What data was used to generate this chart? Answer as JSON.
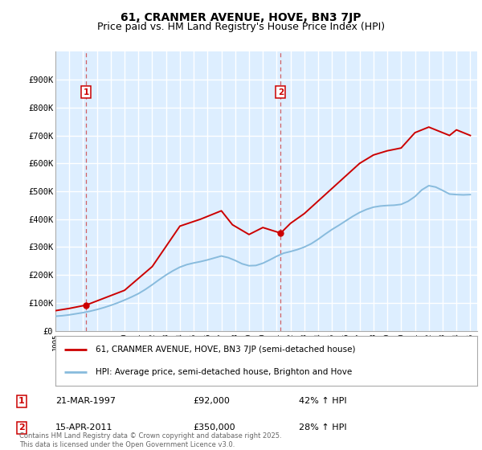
{
  "title": "61, CRANMER AVENUE, HOVE, BN3 7JP",
  "subtitle": "Price paid vs. HM Land Registry's House Price Index (HPI)",
  "ylim": [
    0,
    1000000
  ],
  "yticks": [
    0,
    100000,
    200000,
    300000,
    400000,
    500000,
    600000,
    700000,
    800000,
    900000
  ],
  "ytick_labels": [
    "£0",
    "£100K",
    "£200K",
    "£300K",
    "£400K",
    "£500K",
    "£600K",
    "£700K",
    "£800K",
    "£900K"
  ],
  "bg_color": "#ddeeff",
  "grid_color": "#ffffff",
  "sale1_date": 1997.22,
  "sale1_price": 92000,
  "sale1_label": "1",
  "sale2_date": 2011.29,
  "sale2_price": 350000,
  "sale2_label": "2",
  "legend_line1": "61, CRANMER AVENUE, HOVE, BN3 7JP (semi-detached house)",
  "legend_line2": "HPI: Average price, semi-detached house, Brighton and Hove",
  "annotation1_date": "21-MAR-1997",
  "annotation1_price": "£92,000",
  "annotation1_hpi": "42% ↑ HPI",
  "annotation2_date": "15-APR-2011",
  "annotation2_price": "£350,000",
  "annotation2_hpi": "28% ↑ HPI",
  "footer": "Contains HM Land Registry data © Crown copyright and database right 2025.\nThis data is licensed under the Open Government Licence v3.0.",
  "line_color_red": "#cc0000",
  "line_color_blue": "#88bbdd",
  "title_fontsize": 10,
  "subtitle_fontsize": 9,
  "hpi_years": [
    1995.0,
    1995.5,
    1996.0,
    1996.5,
    1997.0,
    1997.5,
    1998.0,
    1998.5,
    1999.0,
    1999.5,
    2000.0,
    2000.5,
    2001.0,
    2001.5,
    2002.0,
    2002.5,
    2003.0,
    2003.5,
    2004.0,
    2004.5,
    2005.0,
    2005.5,
    2006.0,
    2006.5,
    2007.0,
    2007.5,
    2008.0,
    2008.5,
    2009.0,
    2009.5,
    2010.0,
    2010.5,
    2011.0,
    2011.5,
    2012.0,
    2012.5,
    2013.0,
    2013.5,
    2014.0,
    2014.5,
    2015.0,
    2015.5,
    2016.0,
    2016.5,
    2017.0,
    2017.5,
    2018.0,
    2018.5,
    2019.0,
    2019.5,
    2020.0,
    2020.5,
    2021.0,
    2021.5,
    2022.0,
    2022.5,
    2023.0,
    2023.5,
    2024.0,
    2024.5,
    2025.0
  ],
  "hpi_values": [
    52000,
    54000,
    57000,
    61000,
    65000,
    70000,
    76000,
    83000,
    91000,
    100000,
    110000,
    121000,
    133000,
    148000,
    165000,
    183000,
    200000,
    215000,
    228000,
    237000,
    243000,
    248000,
    254000,
    261000,
    268000,
    262000,
    252000,
    240000,
    233000,
    234000,
    242000,
    254000,
    267000,
    278000,
    284000,
    291000,
    300000,
    312000,
    328000,
    346000,
    363000,
    378000,
    394000,
    410000,
    424000,
    435000,
    443000,
    447000,
    449000,
    450000,
    453000,
    464000,
    481000,
    505000,
    520000,
    515000,
    503000,
    490000,
    488000,
    487000,
    488000
  ],
  "price_years": [
    1995.0,
    1996.0,
    1997.22,
    2000.0,
    2002.0,
    2004.0,
    2005.5,
    2007.0,
    2007.8,
    2009.0,
    2010.0,
    2011.29,
    2012.0,
    2013.0,
    2014.0,
    2015.0,
    2016.0,
    2017.0,
    2018.0,
    2019.0,
    2020.0,
    2021.0,
    2022.0,
    2022.5,
    2023.0,
    2023.5,
    2024.0,
    2024.5,
    2025.0
  ],
  "price_values": [
    72000,
    80000,
    92000,
    145000,
    230000,
    375000,
    400000,
    430000,
    380000,
    345000,
    370000,
    350000,
    385000,
    420000,
    465000,
    510000,
    555000,
    600000,
    630000,
    645000,
    655000,
    710000,
    730000,
    720000,
    710000,
    700000,
    720000,
    710000,
    700000
  ]
}
